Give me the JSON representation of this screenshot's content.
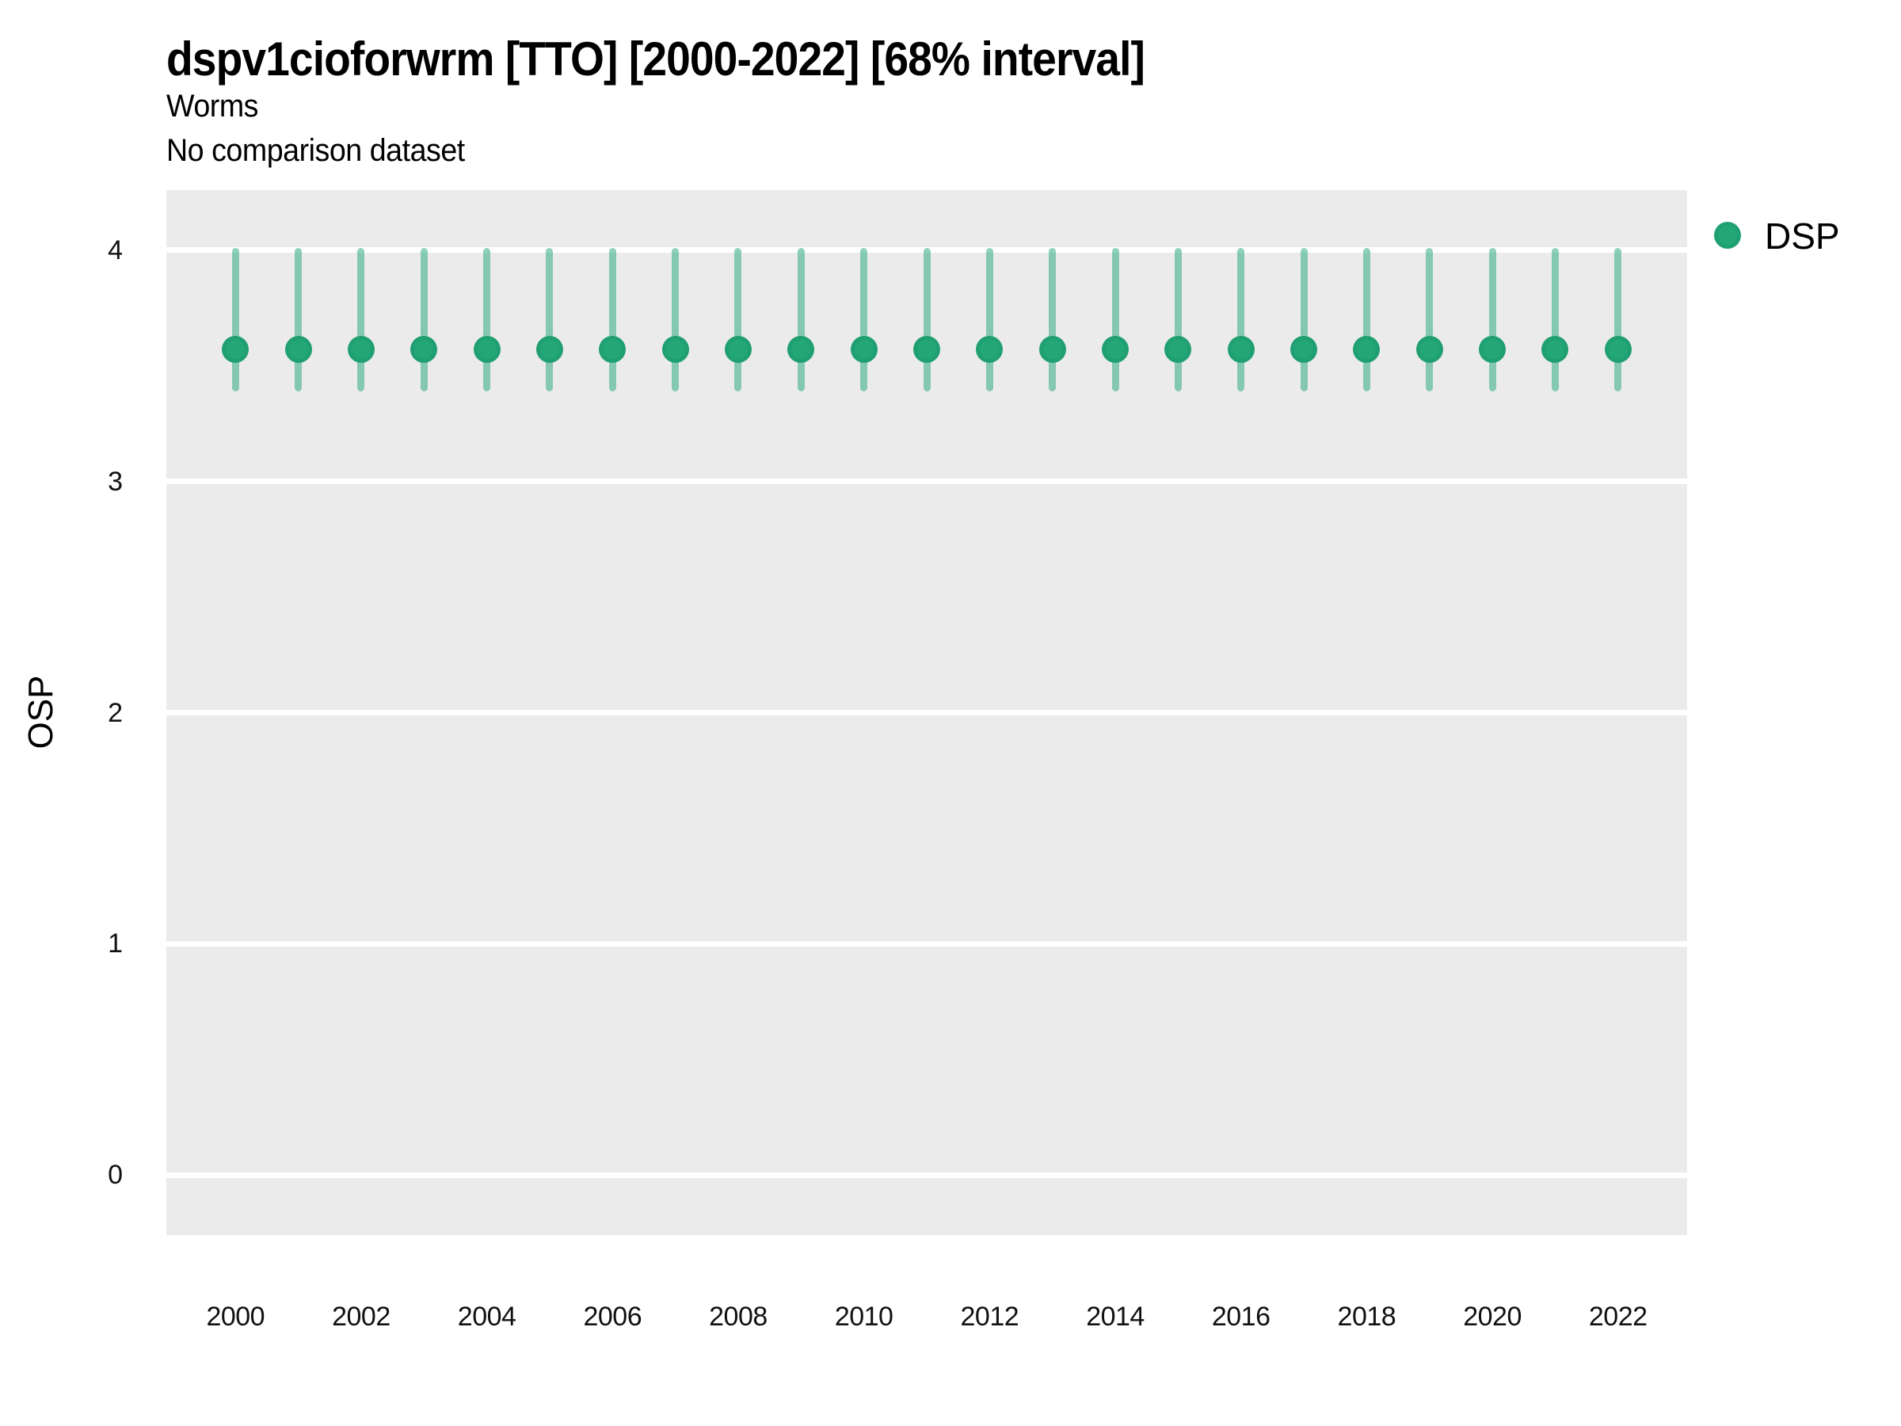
{
  "title": "dspv1cioforwrm [TTO] [2000-2022] [68% interval]",
  "subtitle": "Worms",
  "subtitle2": "No comparison dataset",
  "y_axis": {
    "title": "OSP",
    "ticks": [
      "4",
      "3",
      "2",
      "1",
      "0"
    ]
  },
  "x_axis": {
    "ticks": [
      "2000",
      "2002",
      "2004",
      "2006",
      "2008",
      "2010",
      "2012",
      "2014",
      "2016",
      "2018",
      "2020",
      "2022"
    ]
  },
  "legend": {
    "position": "right",
    "items": [
      {
        "label": "DSP",
        "color": "#2aa87c"
      }
    ]
  },
  "colors": {
    "panel_background": "#ebebeb",
    "gridline": "#ffffff",
    "point_fill": "#24a777",
    "point_rim": "rgba(30,158,112,0.8)",
    "range_line": "rgba(41,168,124,0.52)",
    "text": "#000000"
  },
  "chart_data": {
    "type": "pointrange",
    "title": "dspv1cioforwrm [TTO] [2000-2022] [68% interval]",
    "subtitle": "Worms",
    "caption": "No comparison dataset",
    "xlabel": "",
    "ylabel": "OSP",
    "interval": "68%",
    "legend_position": "right",
    "grid": "horizontal-major-only",
    "xlim": [
      1998.9,
      2023.1
    ],
    "ylim": [
      -0.26,
      4.26
    ],
    "yticks": [
      0,
      1,
      2,
      3,
      4
    ],
    "xticks": [
      2000,
      2002,
      2004,
      2006,
      2008,
      2010,
      2012,
      2014,
      2016,
      2018,
      2020,
      2022
    ],
    "x": [
      2000,
      2001,
      2002,
      2003,
      2004,
      2005,
      2006,
      2007,
      2008,
      2009,
      2010,
      2011,
      2012,
      2013,
      2014,
      2015,
      2016,
      2017,
      2018,
      2019,
      2020,
      2021,
      2022
    ],
    "series": [
      {
        "name": "DSP",
        "mean": [
          3.57,
          3.57,
          3.57,
          3.57,
          3.57,
          3.57,
          3.57,
          3.57,
          3.57,
          3.57,
          3.57,
          3.57,
          3.57,
          3.57,
          3.57,
          3.57,
          3.57,
          3.57,
          3.57,
          3.57,
          3.57,
          3.57,
          3.57
        ],
        "lower": [
          3.39,
          3.39,
          3.39,
          3.39,
          3.39,
          3.39,
          3.39,
          3.39,
          3.39,
          3.39,
          3.39,
          3.39,
          3.39,
          3.39,
          3.39,
          3.39,
          3.39,
          3.39,
          3.39,
          3.39,
          3.39,
          3.39,
          3.39
        ],
        "upper": [
          4.01,
          4.01,
          4.01,
          4.01,
          4.01,
          4.01,
          4.01,
          4.01,
          4.01,
          4.01,
          4.01,
          4.01,
          4.01,
          4.01,
          4.01,
          4.01,
          4.01,
          4.01,
          4.01,
          4.01,
          4.01,
          4.01,
          4.01
        ]
      }
    ]
  }
}
